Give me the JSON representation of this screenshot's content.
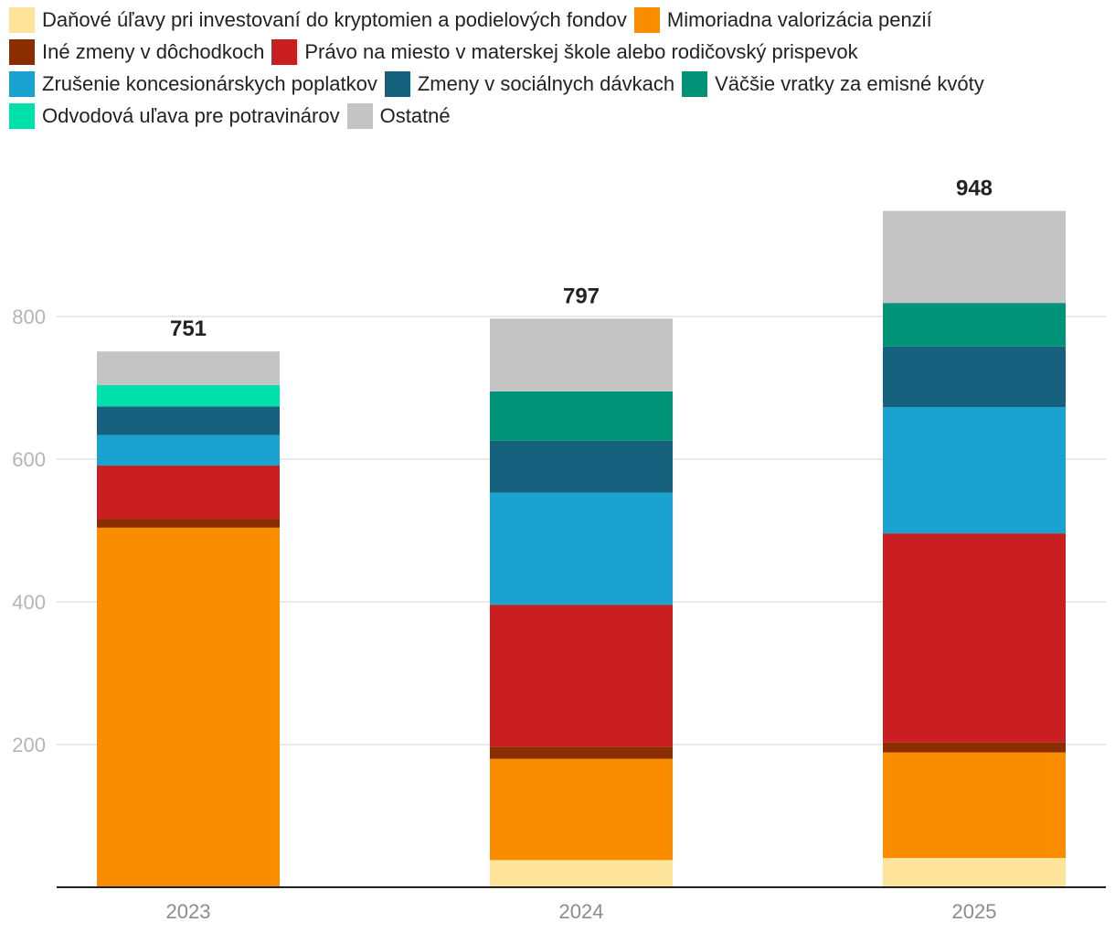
{
  "chart_data": {
    "type": "bar",
    "stacked": true,
    "title": "",
    "xlabel": "",
    "ylabel": "",
    "categories": [
      "2023",
      "2024",
      "2025"
    ],
    "totals": [
      "751",
      "797",
      "948"
    ],
    "ylim": [
      0,
      950
    ],
    "yticks": [
      {
        "value": 200,
        "label": "200"
      },
      {
        "value": 400,
        "label": "400"
      },
      {
        "value": 600,
        "label": "600"
      },
      {
        "value": 800,
        "label": "800"
      }
    ],
    "grid": true,
    "legend_position": "top",
    "series": [
      {
        "name": "Daňové úľavy pri investovaní do kryptomien a podielových fondov",
        "color": "#FFE59C",
        "values": [
          0,
          38,
          41
        ]
      },
      {
        "name": "Mimoriadna valorizácia penzií",
        "color": "#FA8C00",
        "values": [
          504,
          142,
          148
        ]
      },
      {
        "name": "Iné zmeny v dôchodkoch",
        "color": "#8A2E00",
        "values": [
          12,
          17,
          14
        ]
      },
      {
        "name": "Právo na miesto v materskej škole alebo rodičovský prispevok",
        "color": "#C91F20",
        "values": [
          75,
          199,
          293
        ]
      },
      {
        "name": "Zrušenie koncesionárskych poplatkov",
        "color": "#1AA3D1",
        "values": [
          43,
          157,
          177
        ]
      },
      {
        "name": "Zmeny v sociálnych dávkach",
        "color": "#16627E",
        "values": [
          40,
          73,
          85
        ]
      },
      {
        "name": "Väčšie vratky za emisné kvóty",
        "color": "#009378",
        "values": [
          0,
          69,
          61
        ]
      },
      {
        "name": "Odvodová uľava pre potravinárov",
        "color": "#00E0AA",
        "values": [
          30,
          0,
          0
        ]
      },
      {
        "name": "Ostatné",
        "color": "#C4C4C4",
        "values": [
          47,
          102,
          129
        ]
      }
    ]
  }
}
